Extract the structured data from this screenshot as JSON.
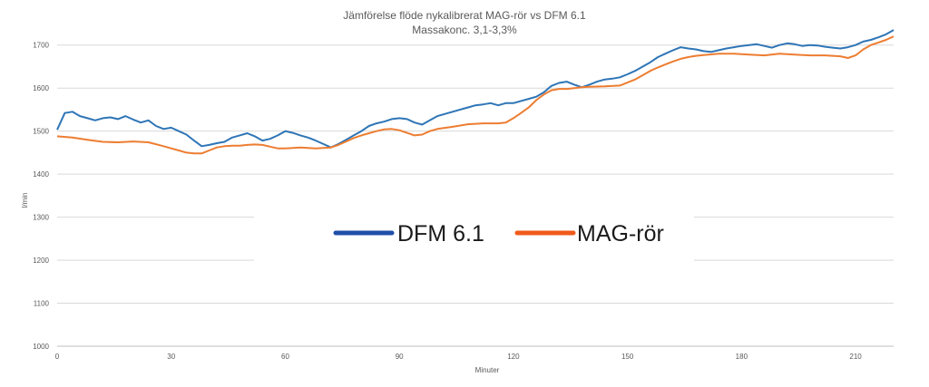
{
  "chart_data": {
    "type": "line",
    "title": "Jämförelse flöde nykalibrerat MAG-rör vs DFM 6.1",
    "subtitle": "Massakonc. 3,1-3,3%",
    "xlabel": "Minuter",
    "ylabel": "l/min",
    "xlim": [
      0,
      220
    ],
    "ylim": [
      1000,
      1750
    ],
    "x_ticks": [
      0,
      30,
      60,
      90,
      120,
      150,
      180,
      210
    ],
    "y_ticks": [
      1000,
      1100,
      1200,
      1300,
      1400,
      1500,
      1600,
      1700
    ],
    "grid": true,
    "legend_position": "center",
    "series": [
      {
        "name": "DFM 6.1",
        "color": "#2e75b6",
        "legend_color": "#1f4fa8",
        "points": [
          [
            0,
            1503
          ],
          [
            2,
            1542
          ],
          [
            4,
            1545
          ],
          [
            6,
            1535
          ],
          [
            8,
            1530
          ],
          [
            10,
            1525
          ],
          [
            12,
            1530
          ],
          [
            14,
            1532
          ],
          [
            16,
            1528
          ],
          [
            18,
            1535
          ],
          [
            20,
            1527
          ],
          [
            22,
            1520
          ],
          [
            24,
            1525
          ],
          [
            26,
            1512
          ],
          [
            28,
            1505
          ],
          [
            30,
            1508
          ],
          [
            32,
            1500
          ],
          [
            34,
            1492
          ],
          [
            36,
            1478
          ],
          [
            38,
            1465
          ],
          [
            40,
            1468
          ],
          [
            42,
            1472
          ],
          [
            44,
            1475
          ],
          [
            46,
            1485
          ],
          [
            48,
            1490
          ],
          [
            50,
            1495
          ],
          [
            52,
            1488
          ],
          [
            54,
            1478
          ],
          [
            56,
            1482
          ],
          [
            58,
            1490
          ],
          [
            60,
            1500
          ],
          [
            62,
            1496
          ],
          [
            64,
            1490
          ],
          [
            66,
            1485
          ],
          [
            68,
            1478
          ],
          [
            70,
            1470
          ],
          [
            72,
            1462
          ],
          [
            74,
            1470
          ],
          [
            76,
            1480
          ],
          [
            78,
            1490
          ],
          [
            80,
            1500
          ],
          [
            82,
            1512
          ],
          [
            84,
            1518
          ],
          [
            86,
            1522
          ],
          [
            88,
            1528
          ],
          [
            90,
            1530
          ],
          [
            92,
            1528
          ],
          [
            94,
            1520
          ],
          [
            96,
            1515
          ],
          [
            98,
            1525
          ],
          [
            100,
            1535
          ],
          [
            102,
            1540
          ],
          [
            104,
            1545
          ],
          [
            106,
            1550
          ],
          [
            108,
            1555
          ],
          [
            110,
            1560
          ],
          [
            112,
            1562
          ],
          [
            114,
            1565
          ],
          [
            116,
            1560
          ],
          [
            118,
            1565
          ],
          [
            120,
            1565
          ],
          [
            122,
            1570
          ],
          [
            124,
            1575
          ],
          [
            126,
            1580
          ],
          [
            128,
            1590
          ],
          [
            130,
            1605
          ],
          [
            132,
            1612
          ],
          [
            134,
            1615
          ],
          [
            136,
            1608
          ],
          [
            138,
            1602
          ],
          [
            140,
            1608
          ],
          [
            142,
            1615
          ],
          [
            144,
            1620
          ],
          [
            146,
            1622
          ],
          [
            148,
            1625
          ],
          [
            150,
            1632
          ],
          [
            152,
            1640
          ],
          [
            154,
            1650
          ],
          [
            156,
            1660
          ],
          [
            158,
            1672
          ],
          [
            160,
            1680
          ],
          [
            162,
            1688
          ],
          [
            164,
            1695
          ],
          [
            166,
            1692
          ],
          [
            168,
            1690
          ],
          [
            170,
            1686
          ],
          [
            172,
            1684
          ],
          [
            174,
            1688
          ],
          [
            176,
            1692
          ],
          [
            178,
            1695
          ],
          [
            180,
            1698
          ],
          [
            182,
            1700
          ],
          [
            184,
            1702
          ],
          [
            186,
            1698
          ],
          [
            188,
            1694
          ],
          [
            190,
            1700
          ],
          [
            192,
            1704
          ],
          [
            194,
            1702
          ],
          [
            196,
            1698
          ],
          [
            198,
            1700
          ],
          [
            200,
            1699
          ],
          [
            202,
            1696
          ],
          [
            204,
            1694
          ],
          [
            206,
            1692
          ],
          [
            208,
            1695
          ],
          [
            210,
            1700
          ],
          [
            212,
            1708
          ],
          [
            214,
            1712
          ],
          [
            216,
            1718
          ],
          [
            218,
            1725
          ],
          [
            220,
            1735
          ]
        ]
      },
      {
        "name": "MAG-rör",
        "color": "#ed7d31",
        "legend_color": "#f05a1a",
        "points": [
          [
            0,
            1488
          ],
          [
            4,
            1485
          ],
          [
            8,
            1480
          ],
          [
            12,
            1475
          ],
          [
            16,
            1474
          ],
          [
            20,
            1476
          ],
          [
            24,
            1474
          ],
          [
            28,
            1465
          ],
          [
            30,
            1460
          ],
          [
            32,
            1455
          ],
          [
            34,
            1450
          ],
          [
            36,
            1448
          ],
          [
            38,
            1448
          ],
          [
            40,
            1455
          ],
          [
            42,
            1462
          ],
          [
            44,
            1465
          ],
          [
            46,
            1466
          ],
          [
            48,
            1466
          ],
          [
            50,
            1468
          ],
          [
            52,
            1469
          ],
          [
            54,
            1468
          ],
          [
            56,
            1464
          ],
          [
            58,
            1460
          ],
          [
            60,
            1460
          ],
          [
            64,
            1462
          ],
          [
            68,
            1460
          ],
          [
            72,
            1462
          ],
          [
            74,
            1468
          ],
          [
            76,
            1476
          ],
          [
            78,
            1484
          ],
          [
            80,
            1490
          ],
          [
            82,
            1495
          ],
          [
            84,
            1500
          ],
          [
            86,
            1504
          ],
          [
            88,
            1505
          ],
          [
            90,
            1502
          ],
          [
            92,
            1496
          ],
          [
            94,
            1490
          ],
          [
            96,
            1492
          ],
          [
            98,
            1500
          ],
          [
            100,
            1505
          ],
          [
            104,
            1510
          ],
          [
            108,
            1516
          ],
          [
            112,
            1518
          ],
          [
            116,
            1518
          ],
          [
            118,
            1520
          ],
          [
            120,
            1530
          ],
          [
            122,
            1542
          ],
          [
            124,
            1555
          ],
          [
            126,
            1572
          ],
          [
            128,
            1585
          ],
          [
            130,
            1595
          ],
          [
            132,
            1598
          ],
          [
            134,
            1598
          ],
          [
            136,
            1600
          ],
          [
            138,
            1602
          ],
          [
            140,
            1603
          ],
          [
            144,
            1604
          ],
          [
            148,
            1606
          ],
          [
            152,
            1620
          ],
          [
            154,
            1630
          ],
          [
            156,
            1640
          ],
          [
            158,
            1648
          ],
          [
            160,
            1655
          ],
          [
            162,
            1662
          ],
          [
            164,
            1668
          ],
          [
            166,
            1672
          ],
          [
            168,
            1675
          ],
          [
            170,
            1677
          ],
          [
            174,
            1680
          ],
          [
            178,
            1680
          ],
          [
            182,
            1678
          ],
          [
            186,
            1676
          ],
          [
            190,
            1680
          ],
          [
            194,
            1678
          ],
          [
            198,
            1676
          ],
          [
            202,
            1676
          ],
          [
            206,
            1674
          ],
          [
            208,
            1670
          ],
          [
            210,
            1676
          ],
          [
            212,
            1690
          ],
          [
            214,
            1700
          ],
          [
            216,
            1706
          ],
          [
            218,
            1712
          ],
          [
            220,
            1720
          ]
        ]
      }
    ]
  }
}
